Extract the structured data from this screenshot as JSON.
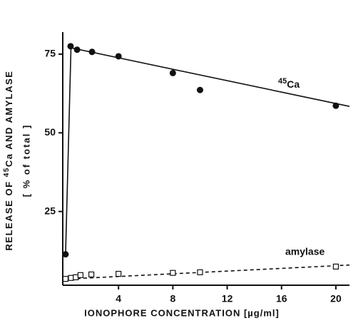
{
  "chart_data": {
    "type": "scatter",
    "ylabel": {
      "before": "RELEASE OF ",
      "sup": "45",
      "after": "Ca AND AMYLASE"
    },
    "ylabel2": "[ % of total ]",
    "xlabel": "IONOPHORE CONCENTRATION [µg/ml]",
    "xlim": [
      0,
      21
    ],
    "ylim": [
      0,
      82
    ],
    "xticks": [
      4,
      8,
      12,
      16,
      20
    ],
    "yticks": [
      25,
      50,
      75
    ],
    "series": [
      {
        "label_sup": "45",
        "label": "Ca",
        "marker": "circle",
        "color": "#111",
        "x": [
          0.1,
          0.47,
          0.95,
          2.05,
          4,
          8,
          10,
          20
        ],
        "values": [
          11.4,
          77.5,
          76.4,
          75.7,
          74.3,
          69,
          63.6,
          58.6
        ],
        "fit": {
          "x": [
            0.1,
            0.5,
            21
          ],
          "y": [
            11,
            77,
            58.4
          ],
          "dash": false
        }
      },
      {
        "label": "amylase",
        "marker": "square",
        "color": "#111",
        "x": [
          0.1,
          0.5,
          0.85,
          1.2,
          2,
          4,
          8,
          10,
          20
        ],
        "values": [
          3.6,
          3.9,
          4.1,
          4.8,
          5,
          5.2,
          5.5,
          5.7,
          7.5
        ],
        "fit": {
          "x": [
            0,
            21
          ],
          "y": [
            3.5,
            8
          ],
          "dash": true
        }
      }
    ]
  }
}
